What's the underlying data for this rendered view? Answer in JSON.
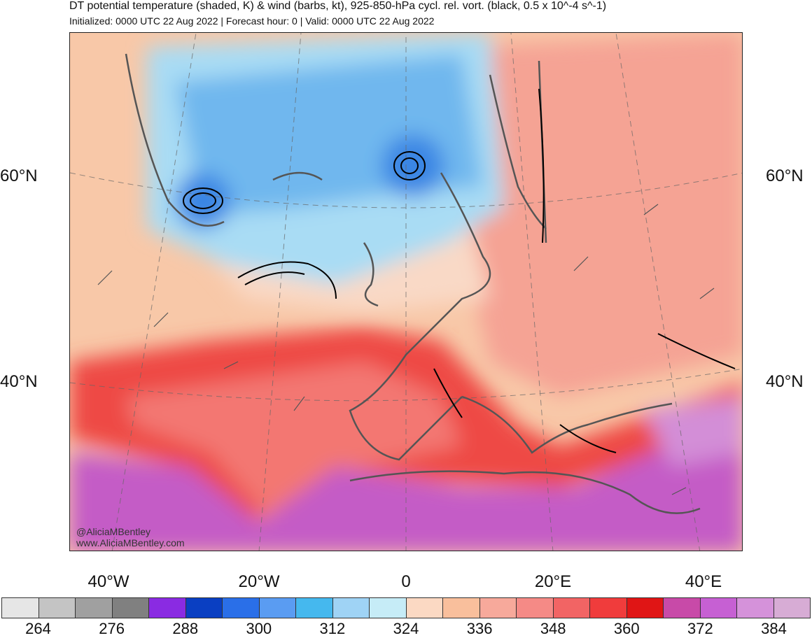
{
  "header": {
    "title": "DT potential temperature (shaded, K) & wind (barbs, kt), 925-850-hPa cycl. rel. vort. (black, 0.5 x 10^-4 s^-1)",
    "subtitle": "Initialized: 0000 UTC 22 Aug 2022 | Forecast hour: 0 | Valid: 0000 UTC 22 Aug 2022"
  },
  "map": {
    "lat_labels": [
      "60°N",
      "40°N"
    ],
    "lon_labels": [
      "40°W",
      "20°W",
      "0",
      "20°E",
      "40°E"
    ],
    "watermark": [
      "@AliciaMBentley",
      "www.AliciaMBentley.com"
    ],
    "colors": {
      "cold_blue": "#59a8f0",
      "light_blue": "#a6dcf5",
      "peach": "#f8d5bd",
      "salmon": "#f6a89a",
      "red": "#e8382f",
      "magenta": "#c55bc9",
      "coastline": "#555555",
      "contour": "#000000"
    }
  },
  "colorbar": {
    "colors": [
      "#e6e6e6",
      "#c4c4c4",
      "#a0a0a0",
      "#808080",
      "#8a2be2",
      "#0a3fc2",
      "#2a6fe8",
      "#5a9cf2",
      "#45b8ee",
      "#9fd3f5",
      "#c6ecf7",
      "#fbd9c3",
      "#f9bf9c",
      "#f7a99b",
      "#f58a86",
      "#f26464",
      "#f03c3c",
      "#e01515",
      "#c84aa8",
      "#c660d3",
      "#d592da",
      "#d7acd5"
    ],
    "labels": [
      "264",
      "276",
      "288",
      "300",
      "312",
      "324",
      "336",
      "348",
      "360",
      "372",
      "384"
    ]
  }
}
